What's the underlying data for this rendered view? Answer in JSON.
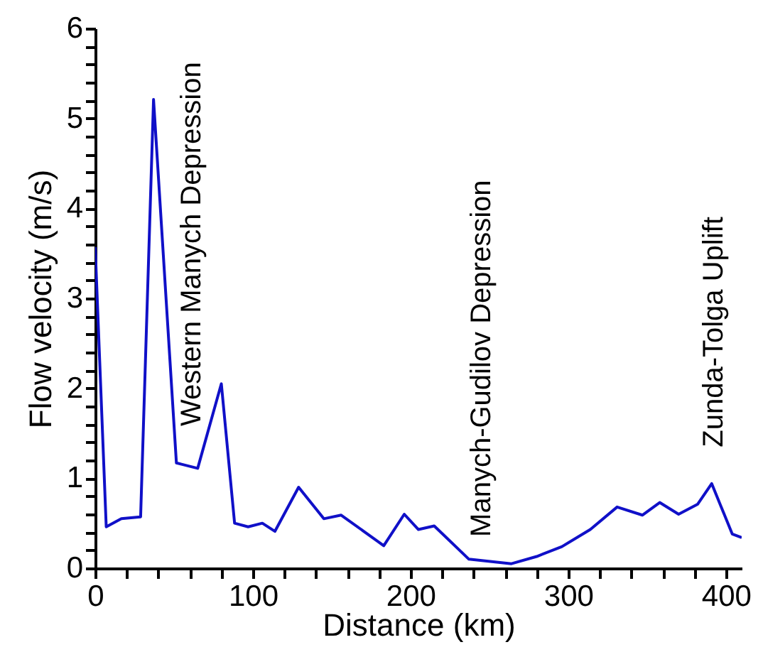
{
  "chart_data": {
    "type": "line",
    "xlabel": "Distance (km)",
    "ylabel": "Flow velocity (m/s)",
    "x": [
      0,
      7,
      16.6,
      28.8,
      37,
      51.5,
      65,
      80,
      88.4,
      97,
      106,
      114,
      129,
      145,
      156,
      183,
      196,
      205,
      215,
      237,
      264,
      280,
      296,
      314,
      331,
      347,
      358,
      370,
      382,
      391,
      404,
      410
    ],
    "series": [
      {
        "color": "#1010c8",
        "values": [
          3.57,
          0.46,
          0.55,
          0.57,
          5.21,
          1.17,
          1.11,
          2.05,
          0.5,
          0.46,
          0.5,
          0.41,
          0.9,
          0.55,
          0.59,
          0.25,
          0.6,
          0.43,
          0.47,
          0.1,
          0.05,
          0.13,
          0.24,
          0.43,
          0.68,
          0.59,
          0.73,
          0.6,
          0.71,
          0.94,
          0.38,
          0.34
        ]
      }
    ],
    "xlim": [
      0,
      410
    ],
    "ylim": [
      0,
      6
    ],
    "xticks": [
      0,
      {
        "value": 20,
        "label": null
      },
      {
        "value": 40,
        "label": null
      },
      {
        "value": 60,
        "label": null
      },
      {
        "value": 80,
        "label": null
      },
      100,
      {
        "value": 120,
        "label": null
      },
      {
        "value": 140,
        "label": null
      },
      {
        "value": 160,
        "label": null
      },
      {
        "value": 180,
        "label": null
      },
      200,
      {
        "value": 220,
        "label": null
      },
      {
        "value": 240,
        "label": null
      },
      {
        "value": 260,
        "label": null
      },
      {
        "value": 280,
        "label": null
      },
      300,
      {
        "value": 320,
        "label": null
      },
      {
        "value": 340,
        "label": null
      },
      {
        "value": 360,
        "label": null
      },
      {
        "value": 380,
        "label": null
      },
      400
    ],
    "yticks": [
      0,
      {
        "value": 0.2,
        "label": null
      },
      {
        "value": 0.4,
        "label": null
      },
      {
        "value": 0.6,
        "label": null
      },
      {
        "value": 0.8,
        "label": null
      },
      1,
      {
        "value": 1.2,
        "label": null
      },
      {
        "value": 1.4,
        "label": null
      },
      {
        "value": 1.6,
        "label": null
      },
      {
        "value": 1.8,
        "label": null
      },
      2,
      {
        "value": 2.2,
        "label": null
      },
      {
        "value": 2.4,
        "label": null
      },
      {
        "value": 2.6,
        "label": null
      },
      {
        "value": 2.8,
        "label": null
      },
      3,
      {
        "value": 3.2,
        "label": null
      },
      {
        "value": 3.4,
        "label": null
      },
      {
        "value": 3.6,
        "label": null
      },
      {
        "value": 3.8,
        "label": null
      },
      4,
      {
        "value": 4.2,
        "label": null
      },
      {
        "value": 4.4,
        "label": null
      },
      {
        "value": 4.6,
        "label": null
      },
      {
        "value": 4.8,
        "label": null
      },
      5,
      {
        "value": 5.2,
        "label": null
      },
      {
        "value": 5.4,
        "label": null
      },
      {
        "value": 5.6,
        "label": null
      },
      {
        "value": 5.8,
        "label": null
      },
      6
    ],
    "marker": "none",
    "line_style": "solid",
    "annotations": [
      "Western Manych Depression",
      "Manych-Gudilov Depression",
      "Zunda-Tolga Uplift"
    ]
  }
}
